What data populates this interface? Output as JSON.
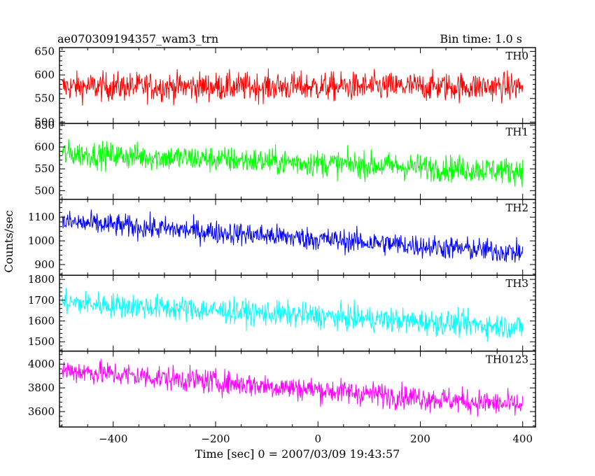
{
  "header": {
    "title": "ae070309194357_wam3_trn",
    "bin_time": "Bin time: 1.0 s"
  },
  "axes": {
    "xlabel": "Time [sec] 0 = 2007/03/09 19:43:57",
    "ylabel": "Counts/sec"
  },
  "chart_data": {
    "type": "line",
    "title": "ae070309194357_wam3_trn",
    "subtitle": "Bin time: 1.0 s",
    "xlabel": "Time [sec] 0 = 2007/03/09 19:43:57",
    "ylabel": "Counts/sec",
    "xlim": [
      -505,
      425
    ],
    "x_range_data": [
      -500,
      400
    ],
    "x_ticks": [
      -400,
      -200,
      0,
      200,
      400
    ],
    "x_tick_labels": [
      "−400",
      "−200",
      "0",
      "200",
      "400"
    ],
    "grid": false,
    "series": [
      {
        "name": "TH0",
        "color": "#ff0000",
        "ylim": [
          497,
          658
        ],
        "y_ticks": [
          500,
          550,
          600,
          650
        ],
        "trend_start": 575,
        "trend_end": 575,
        "noise_amplitude": 28
      },
      {
        "name": "TH1",
        "color": "#00ff00",
        "ylim": [
          480,
          654
        ],
        "y_ticks": [
          500,
          550,
          600,
          650
        ],
        "trend_start": 585,
        "trend_end": 545,
        "noise_amplitude": 28
      },
      {
        "name": "TH2",
        "color": "#0000ff",
        "ylim": [
          855,
          1175
        ],
        "y_ticks": [
          900,
          1000,
          1100
        ],
        "trend_start": 1080,
        "trend_end": 950,
        "noise_amplitude": 45
      },
      {
        "name": "TH3",
        "color": "#00ffff",
        "ylim": [
          1455,
          1820
        ],
        "y_ticks": [
          1500,
          1600,
          1700,
          1800
        ],
        "trend_start": 1690,
        "trend_end": 1570,
        "noise_amplitude": 55
      },
      {
        "name": "TH0123",
        "color": "#ff00ff",
        "ylim": [
          3470,
          4110
        ],
        "y_ticks": [
          3600,
          3800,
          4000
        ],
        "trend_start": 3950,
        "trend_end": 3650,
        "noise_amplitude": 95
      }
    ]
  }
}
